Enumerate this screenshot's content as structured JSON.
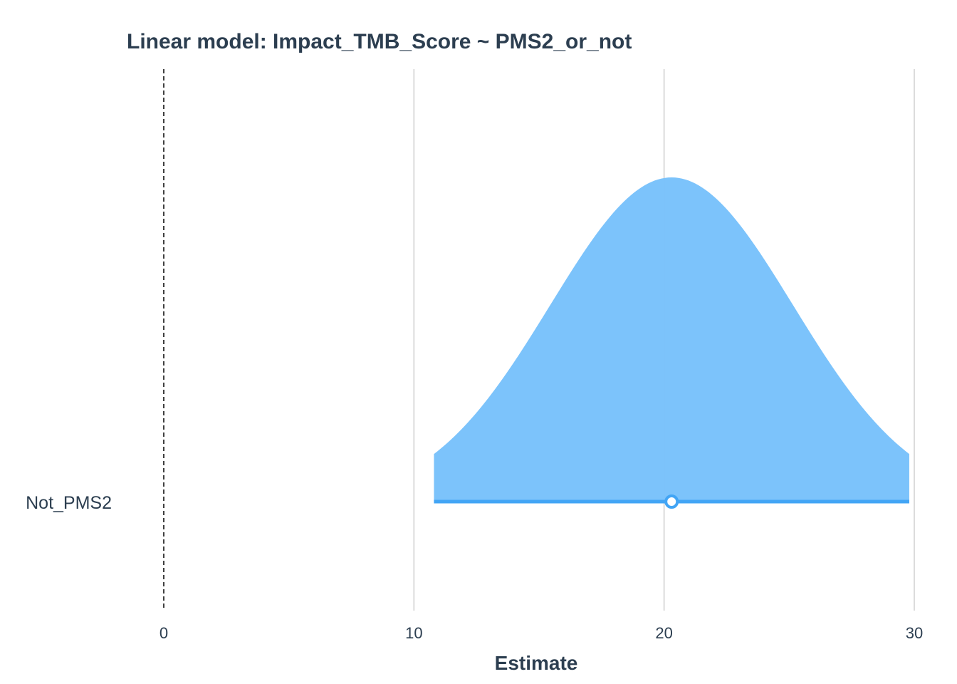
{
  "chart_data": {
    "type": "area",
    "title": "Linear model: Impact_TMB_Score ~ PMS2_or_not",
    "xlabel": "Estimate",
    "ylabel": "",
    "xlim": [
      -6.5,
      30.5
    ],
    "x_ticks": [
      0,
      10,
      20,
      30
    ],
    "x_tick_labels": [
      "0",
      "10",
      "20",
      "30"
    ],
    "reference_line": 0,
    "grid": true,
    "legend": "none",
    "parameters": [
      {
        "label": "Not_PMS2",
        "estimate": 20.3,
        "ci_low": 10.8,
        "ci_high": 29.8,
        "density_sd": 4.85
      }
    ],
    "colors": {
      "fill": "#78c1fb",
      "line": "#42a5f5",
      "point_stroke": "#42a5f5",
      "point_fill": "#ffffff",
      "grid": "#dcdcdc",
      "text": "#2c3e50",
      "reference": "#000000"
    }
  }
}
